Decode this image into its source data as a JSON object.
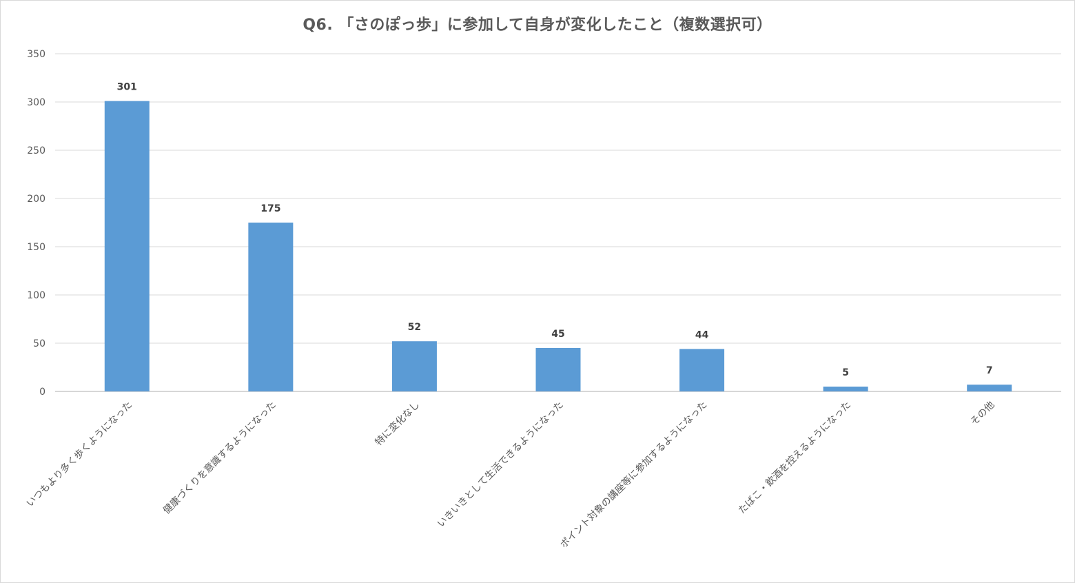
{
  "chart_data": {
    "type": "bar",
    "title": "Q6. 「さのぽっ歩」に参加して自身が変化したこと（複数選択可）",
    "categories": [
      "いつもより多く歩くようになった",
      "健康づくりを意識するようになった",
      "特に変化なし",
      "いきいきとして生活できるようになった",
      "ポイント対象の講座等に参加するようになった",
      "たばこ・飲酒を控えるようになった",
      "その他"
    ],
    "values": [
      301,
      175,
      52,
      45,
      44,
      5,
      7
    ],
    "ylim": [
      0,
      350
    ],
    "yticks": [
      0,
      50,
      100,
      150,
      200,
      250,
      300,
      350
    ],
    "grid": true,
    "legend": "none",
    "bar_color": "#5b9bd5",
    "grid_color": "#d9d9d9",
    "axis_color": "#bfbfbf"
  }
}
